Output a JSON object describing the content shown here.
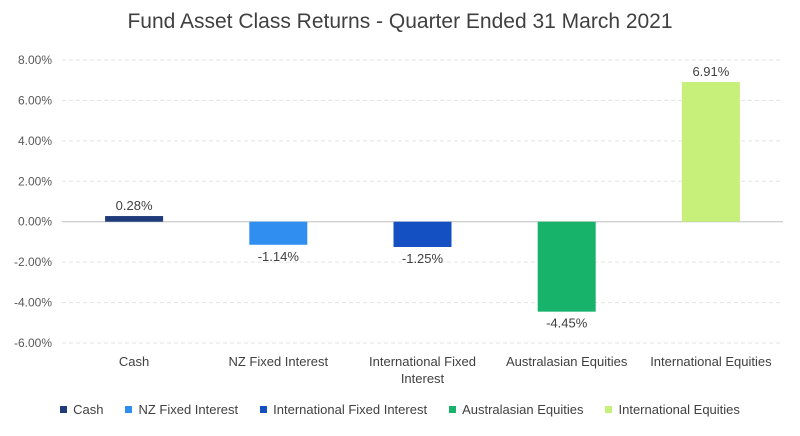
{
  "chart_data": {
    "type": "bar",
    "title": "Fund Asset Class Returns - Quarter Ended 31 March 2021",
    "categories": [
      "Cash",
      "NZ Fixed Interest",
      "International Fixed Interest",
      "Australasian Equities",
      "International Equities"
    ],
    "category_label_lines": [
      [
        "Cash"
      ],
      [
        "NZ Fixed Interest"
      ],
      [
        "International Fixed",
        "Interest"
      ],
      [
        "Australasian Equities"
      ],
      [
        "International Equities"
      ]
    ],
    "values": [
      0.28,
      -1.14,
      -1.25,
      -4.45,
      6.91
    ],
    "data_labels": [
      "0.28%",
      "-1.14%",
      "-1.25%",
      "-4.45%",
      "6.91%"
    ],
    "colors": [
      "#1f3b7a",
      "#2f8ef0",
      "#1550c2",
      "#17b36b",
      "#c6f07a"
    ],
    "ylim": [
      -6,
      8
    ],
    "yticks": [
      -6,
      -4,
      -2,
      0,
      2,
      4,
      6,
      8
    ],
    "ytick_labels": [
      "-6.00%",
      "-4.00%",
      "-2.00%",
      "0.00%",
      "2.00%",
      "4.00%",
      "6.00%",
      "8.00%"
    ],
    "grid": true,
    "legend": {
      "position": "bottom",
      "entries": [
        "Cash",
        "NZ Fixed Interest",
        "International Fixed Interest",
        "Australasian Equities",
        "International Equities"
      ]
    }
  }
}
